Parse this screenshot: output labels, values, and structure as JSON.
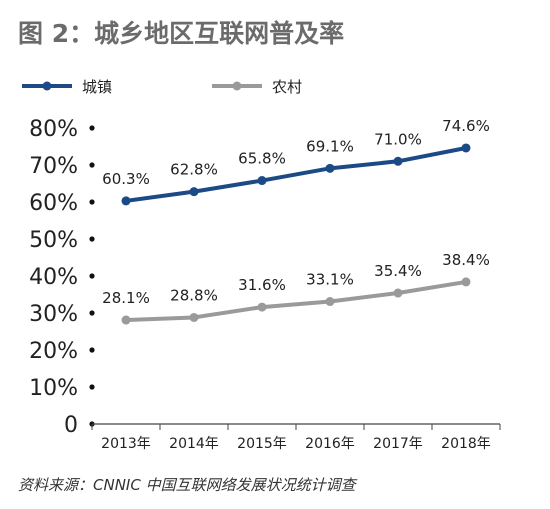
{
  "chart_data": {
    "type": "line",
    "title": "图 2：城乡地区互联网普及率",
    "categories": [
      "2013年",
      "2014年",
      "2015年",
      "2016年",
      "2017年",
      "2018年"
    ],
    "series": [
      {
        "name": "城镇",
        "color": "#1b4a86",
        "values": [
          60.3,
          62.8,
          65.8,
          69.1,
          71.0,
          74.6
        ],
        "labels": [
          "60.3%",
          "62.8%",
          "65.8%",
          "69.1%",
          "71.0%",
          "74.6%"
        ]
      },
      {
        "name": "农村",
        "color": "#9a9a9a",
        "values": [
          28.1,
          28.8,
          31.6,
          33.1,
          35.4,
          38.4
        ],
        "labels": [
          "28.1%",
          "28.8%",
          "31.6%",
          "33.1%",
          "35.4%",
          "38.4%"
        ]
      }
    ],
    "yticks": [
      "0",
      "10%",
      "20%",
      "30%",
      "40%",
      "50%",
      "60%",
      "70%",
      "80%"
    ],
    "ylim": [
      0,
      80
    ],
    "legend_position": "top-left",
    "grid": false
  },
  "source": "资料来源：CNNIC 中国互联网络发展状况统计调查"
}
